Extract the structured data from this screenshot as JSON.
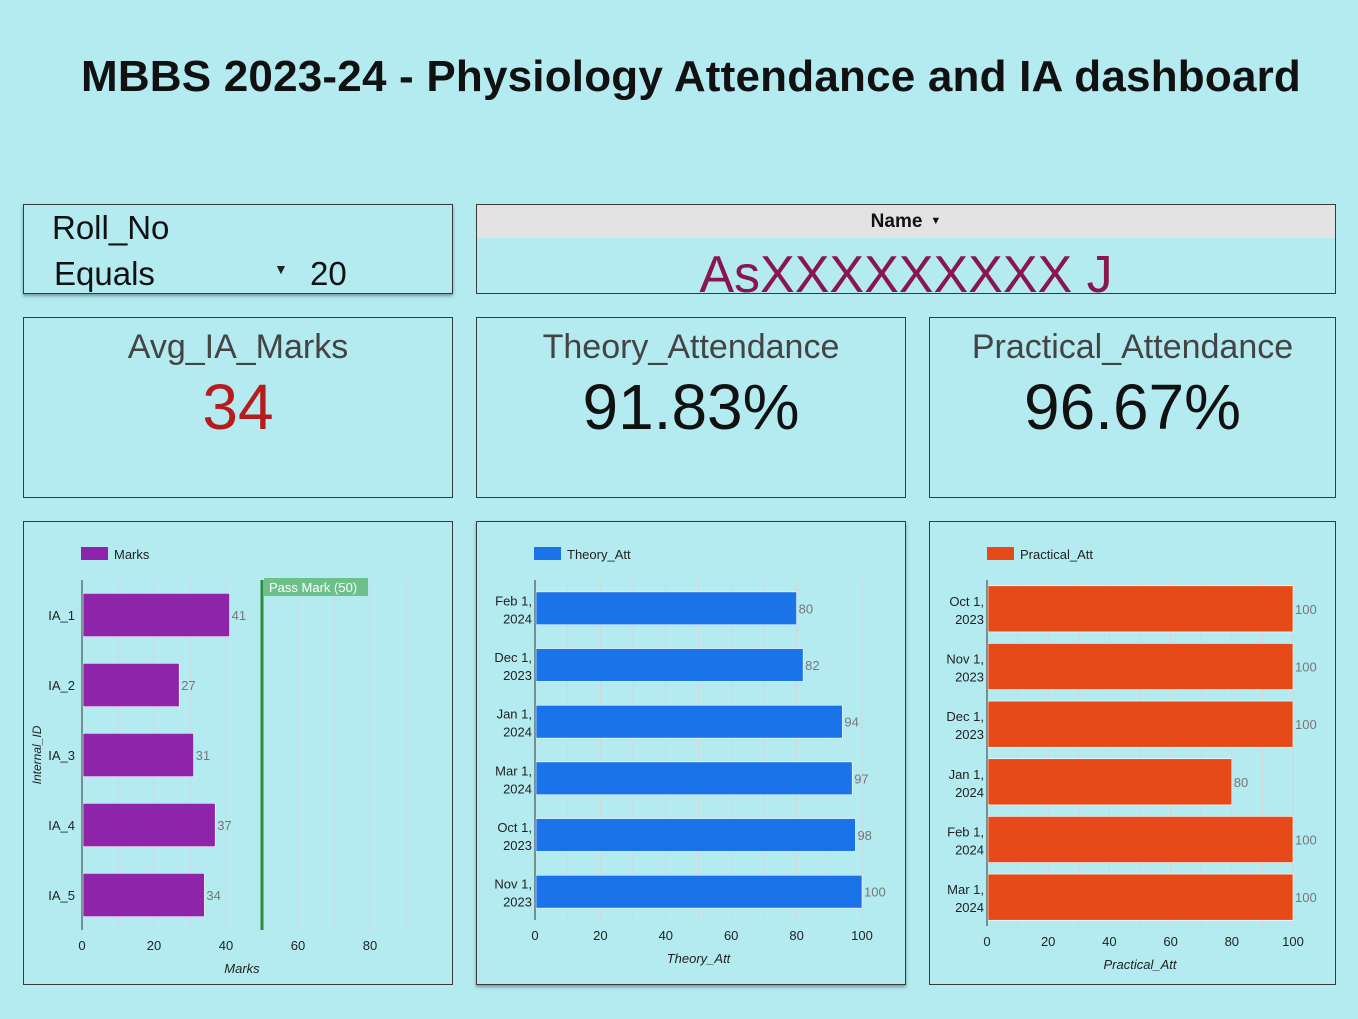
{
  "page": {
    "title": "MBBS 2023-24 - Physiology Attendance and IA dashboard"
  },
  "filter": {
    "field": "Roll_No",
    "operator": "Equals",
    "value": "20"
  },
  "name_table": {
    "header": "Name",
    "value": "AsXXXXXXXXX J"
  },
  "scorecards": [
    {
      "label": "Avg_IA_Marks",
      "value": "34",
      "color": "#b71c1c"
    },
    {
      "label": "Theory_Attendance",
      "value": "91.83%",
      "color": "#111111"
    },
    {
      "label": "Practical_Attendance",
      "value": "96.67%",
      "color": "#111111"
    }
  ],
  "chart_data": [
    {
      "type": "bar",
      "orientation": "horizontal",
      "legend": "Marks",
      "color": "#8e24aa",
      "categories": [
        "IA_1",
        "IA_2",
        "IA_3",
        "IA_4",
        "IA_5"
      ],
      "values": [
        41,
        27,
        31,
        37,
        34
      ],
      "xlabel": "Marks",
      "ylabel": "Internal_ID",
      "xlim": [
        0,
        90
      ],
      "xticks": [
        0,
        20,
        40,
        60,
        80
      ],
      "reference_line": {
        "label": "Pass Mark (50)",
        "value": 50,
        "color": "#2e8b3e"
      }
    },
    {
      "type": "bar",
      "orientation": "horizontal",
      "legend": "Theory_Att",
      "color": "#1a73e8",
      "categories": [
        [
          "Feb 1,",
          "2024"
        ],
        [
          "Dec 1,",
          "2023"
        ],
        [
          "Jan 1,",
          "2024"
        ],
        [
          "Mar 1,",
          "2024"
        ],
        [
          "Oct 1,",
          "2023"
        ],
        [
          "Nov 1,",
          "2023"
        ]
      ],
      "values": [
        80,
        82,
        94,
        97,
        98,
        100
      ],
      "xlabel": "Theory_Att",
      "ylabel": "",
      "xlim": [
        0,
        100
      ],
      "xticks": [
        0,
        20,
        40,
        60,
        80,
        100
      ]
    },
    {
      "type": "bar",
      "orientation": "horizontal",
      "legend": "Practical_Att",
      "color": "#e64a19",
      "categories": [
        [
          "Oct 1,",
          "2023"
        ],
        [
          "Nov 1,",
          "2023"
        ],
        [
          "Dec 1,",
          "2023"
        ],
        [
          "Jan 1,",
          "2024"
        ],
        [
          "Feb 1,",
          "2024"
        ],
        [
          "Mar 1,",
          "2024"
        ]
      ],
      "values": [
        100,
        100,
        100,
        80,
        100,
        100
      ],
      "xlabel": "Practical_Att",
      "ylabel": "",
      "xlim": [
        0,
        100
      ],
      "xticks": [
        0,
        20,
        40,
        60,
        80,
        100
      ]
    }
  ]
}
